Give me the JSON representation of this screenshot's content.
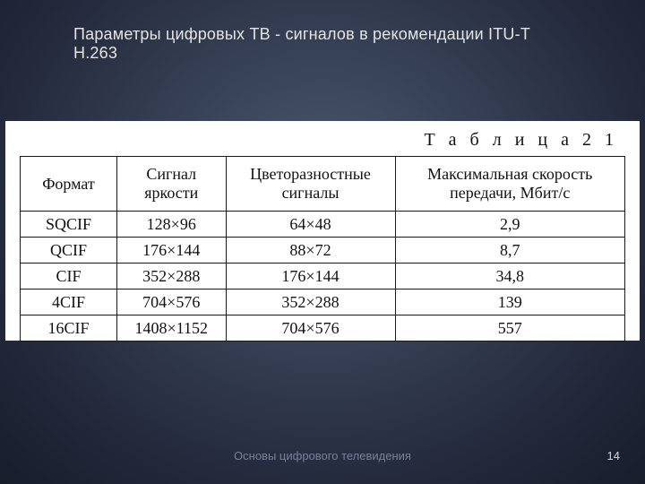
{
  "slide": {
    "title": "Параметры цифровых ТВ - сигналов в рекомендации ITU-T Н.263",
    "footer": "Основы цифрового телевидения",
    "page_number": "14",
    "background_outer": "#181d2c",
    "background_inner": "#4a5970",
    "title_color": "#e3e5e0"
  },
  "table": {
    "caption": "Т а б л и ц а  2 1",
    "columns": [
      "Формат",
      "Сигнал яркости",
      "Цветоразностные сигналы",
      "Максимальная скорость передачи, Мбит/с"
    ],
    "column_widths_pct": [
      16,
      18,
      28,
      38
    ],
    "rows": [
      [
        "SQCIF",
        "128×96",
        "64×48",
        "2,9"
      ],
      [
        "QCIF",
        "176×144",
        "88×72",
        "8,7"
      ],
      [
        "CIF",
        "352×288",
        "176×144",
        "34,8"
      ],
      [
        "4CIF",
        "704×576",
        "352×288",
        "139"
      ],
      [
        "16CIF",
        "1408×1152",
        "704×576",
        "557"
      ]
    ],
    "border_color": "#1a1a1a",
    "header_fontsize_pt": 14,
    "cell_fontsize_pt": 14,
    "panel_background": "#ffffff"
  }
}
